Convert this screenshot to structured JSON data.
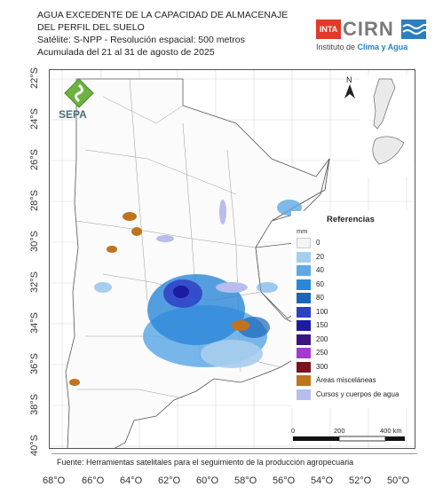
{
  "title": {
    "line1": "AGUA EXCEDENTE DE LA CAPACIDAD DE ALMACENAJE",
    "line2": "DEL PERFIL DEL SUELO",
    "line3": "Satélite: S-NPP - Resolución espacial: 500 metros",
    "line4": "Acumulada del 21 al 31 de agosto de 2025"
  },
  "logos": {
    "inta": "INTA",
    "cirn": "CIRN",
    "cirn_sub_plain": "Instituto de ",
    "cirn_sub_bold": "Clima y Agua",
    "sepa": "SEPA"
  },
  "north_label": "N",
  "axes": {
    "lat_labels": [
      "22°S",
      "24°S",
      "26°S",
      "28°S",
      "30°S",
      "32°S",
      "34°S",
      "36°S",
      "38°S",
      "40°S"
    ],
    "lon_labels": [
      "68°O",
      "66°O",
      "64°O",
      "62°O",
      "60°O",
      "58°O",
      "56°O",
      "54°O",
      "52°O",
      "50°O"
    ]
  },
  "legend": {
    "title": "Referencias",
    "unit": "mm",
    "items": [
      {
        "label": "0",
        "color": "#f4f4f4"
      },
      {
        "label": "20",
        "color": "#a7cdee"
      },
      {
        "label": "40",
        "color": "#5fa9e6"
      },
      {
        "label": "60",
        "color": "#2a87d8"
      },
      {
        "label": "80",
        "color": "#1a66b8"
      },
      {
        "label": "100",
        "color": "#2f3ec8"
      },
      {
        "label": "150",
        "color": "#1c1ca0"
      },
      {
        "label": "200",
        "color": "#3b1480"
      },
      {
        "label": "250",
        "color": "#a23bd0"
      },
      {
        "label": "300",
        "color": "#7a1220"
      },
      {
        "label": "Áreas misceláneas",
        "color": "#c0731e"
      },
      {
        "label": "Cursos y cuerpos de agua",
        "color": "#b7bdec"
      }
    ]
  },
  "scale": {
    "labels": [
      "0",
      "200",
      "400 km"
    ]
  },
  "source": "Fuente: Herramientas satelitales para el seguimiento de la producción agropecuaria"
}
